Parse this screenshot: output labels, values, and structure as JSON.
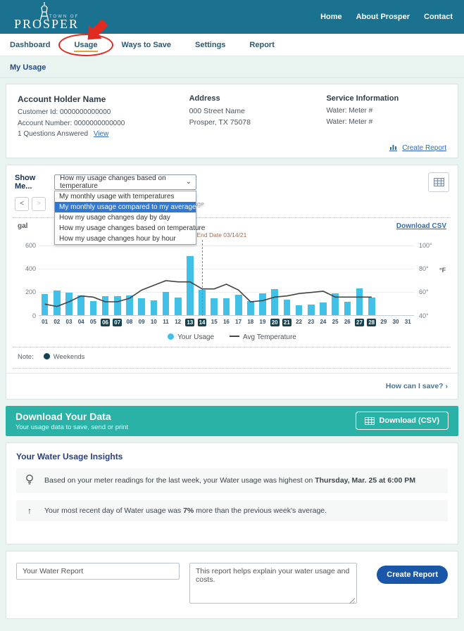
{
  "header": {
    "logo_top": "TOWN OF",
    "logo_name": "PROSPER",
    "nav": [
      "Home",
      "About Prosper",
      "Contact"
    ]
  },
  "subnav": {
    "items": [
      {
        "label": "Dashboard",
        "active": false
      },
      {
        "label": "Usage",
        "active": true
      },
      {
        "label": "Ways to Save",
        "active": false
      },
      {
        "label": "Settings",
        "active": false
      },
      {
        "label": "Report",
        "active": false
      }
    ]
  },
  "section_title": "My Usage",
  "account": {
    "holder_title": "Account Holder Name",
    "customer_id": "Customer Id: 0000000000000",
    "account_number": "Account Number: 0000000000000",
    "questions": "1 Questions Answered",
    "view_link": "View",
    "address_title": "Address",
    "address_line1": "000 Street Name",
    "address_line2": "Prosper, TX 75078",
    "service_title": "Service Information",
    "service_lines": [
      "Water: Meter #",
      "Water: Meter #"
    ],
    "create_report_link": "Create Report"
  },
  "chart_card": {
    "show_me_label": "Show Me...",
    "select_value": "How my usage changes based on temperature",
    "dropdown_options": [
      "My monthly usage with temperatures",
      "My monthly usage compared to my average usage",
      "How my usage changes day by day",
      "How my usage changes based on temperature",
      "How my usage changes hour by hour"
    ],
    "highlighted_option_index": 1,
    "prev_label": "<",
    "next_label": ">",
    "covered_text_fragment": "age",
    "unit_label": "gal",
    "download_csv": "Download CSV",
    "note_label": "Note:",
    "note_weekends": "Weekends",
    "how_save_link": "How can I save? ›"
  },
  "chart_data": {
    "type": "bar",
    "x": [
      "01",
      "02",
      "03",
      "04",
      "05",
      "06",
      "07",
      "08",
      "09",
      "10",
      "11",
      "12",
      "13",
      "14",
      "15",
      "16",
      "17",
      "18",
      "19",
      "20",
      "21",
      "22",
      "23",
      "24",
      "25",
      "26",
      "27",
      "28",
      "29",
      "30",
      "31"
    ],
    "weekend_days": [
      "06",
      "07",
      "13",
      "14",
      "20",
      "21",
      "27",
      "28"
    ],
    "series": [
      {
        "name": "Your Usage",
        "type": "bar",
        "axis": "left",
        "unit": "gal",
        "values": [
          175,
          210,
          190,
          165,
          115,
          160,
          160,
          165,
          140,
          125,
          195,
          150,
          500,
          215,
          140,
          140,
          170,
          115,
          185,
          220,
          130,
          80,
          85,
          105,
          185,
          110,
          225,
          150,
          null,
          null,
          null
        ]
      },
      {
        "name": "Avg Temperature",
        "type": "line",
        "axis": "right",
        "unit": "°F",
        "values": [
          50,
          48,
          52,
          57,
          56,
          52,
          52,
          55,
          62,
          66,
          70,
          69,
          69,
          63,
          63,
          67,
          62,
          52,
          53,
          56,
          57,
          59,
          60,
          61,
          56,
          56,
          56,
          56,
          null,
          null,
          null
        ]
      }
    ],
    "left_axis": {
      "label": "gal",
      "ticks": [
        0,
        200,
        400,
        600
      ],
      "max": 600
    },
    "right_axis": {
      "label": "°F",
      "ticks": [
        "40°",
        "60°",
        "80°",
        "100°"
      ],
      "min": 40,
      "max": 100
    },
    "annotation": {
      "text": "Bill End Date 03/14/21",
      "day": "14"
    },
    "legend": [
      "Your Usage",
      "Avg Temperature"
    ],
    "grid": true,
    "legend_position": "bottom"
  },
  "download_banner": {
    "title": "Download Your Data",
    "subtitle": "Your usage data to save, send or print",
    "button": "Download (CSV)"
  },
  "insights": {
    "title": "Your Water Usage Insights",
    "items": [
      {
        "icon": "lightbulb-icon",
        "pre": "Based on your meter readings for the last week, your Water usage was highest on ",
        "bold": "Thursday, Mar. 25 at 6:00 PM",
        "post": ""
      },
      {
        "icon": "arrow-up-icon",
        "pre": "Your most recent day of Water usage was ",
        "bold": "7%",
        "post": " more than the previous week's average."
      }
    ]
  },
  "report_form": {
    "name_value": "Your Water Report",
    "description_value": "This report helps explain your water usage and costs.",
    "button": "Create Report"
  },
  "colors": {
    "header_teal": "#1a7190",
    "bar_blue": "#41c0e8",
    "weekend_badge": "#12414f",
    "banner_teal": "#29b2a5",
    "highlight_blue": "#3178d0",
    "annotation_red": "#e02b20",
    "bill_line": "#bf7350",
    "temp_line": "#444444",
    "button_navy": "#1b57a8",
    "active_tab_underline": "#dfa14c"
  }
}
